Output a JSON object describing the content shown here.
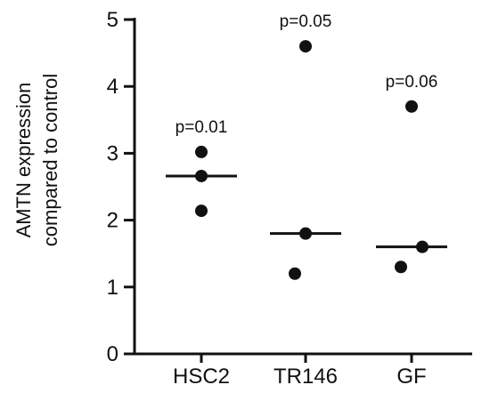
{
  "chart_data": {
    "type": "scatter",
    "title": "",
    "xlabel": "",
    "ylabel_lines": [
      "AMTN expression",
      "compared to control"
    ],
    "ylim": [
      0,
      5
    ],
    "yticks": [
      0,
      1,
      2,
      3,
      4,
      5
    ],
    "categories": [
      "HSC2",
      "TR146",
      "GF"
    ],
    "groups": [
      {
        "category": "HSC2",
        "points": [
          3.02,
          2.66,
          2.14
        ],
        "median": 2.66,
        "pvalue": "p=0.01"
      },
      {
        "category": "TR146",
        "points": [
          4.6,
          1.8,
          1.2
        ],
        "median": 1.8,
        "pvalue": "p=0.05"
      },
      {
        "category": "GF",
        "points": [
          3.7,
          1.6,
          1.3
        ],
        "median": 1.6,
        "pvalue": "p=0.06"
      }
    ],
    "grid": false,
    "legend": "none"
  }
}
